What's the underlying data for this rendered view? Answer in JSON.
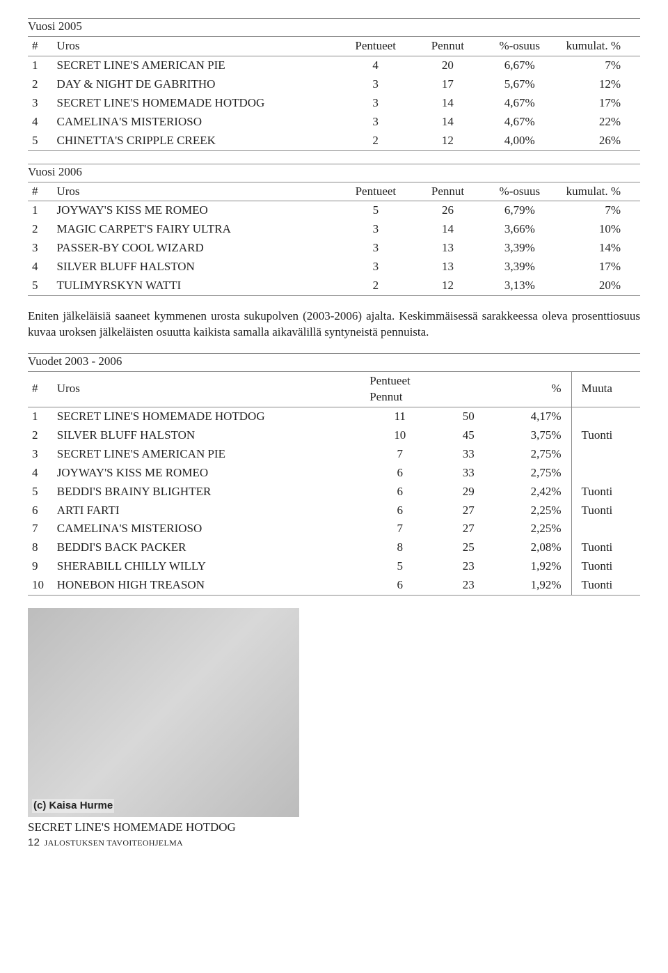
{
  "table2005": {
    "title": "Vuosi 2005",
    "headers": [
      "#",
      "Uros",
      "Pentueet",
      "Pennut",
      "%-osuus",
      "kumulat. %"
    ],
    "rows": [
      [
        "1",
        "SECRET LINE'S AMERICAN PIE",
        "4",
        "20",
        "6,67%",
        "7%"
      ],
      [
        "2",
        "DAY & NIGHT DE GABRITHO",
        "3",
        "17",
        "5,67%",
        "12%"
      ],
      [
        "3",
        "SECRET LINE'S HOMEMADE HOTDOG",
        "3",
        "14",
        "4,67%",
        "17%"
      ],
      [
        "4",
        "CAMELINA'S MISTERIOSO",
        "3",
        "14",
        "4,67%",
        "22%"
      ],
      [
        "5",
        "CHINETTA'S CRIPPLE CREEK",
        "2",
        "12",
        "4,00%",
        "26%"
      ]
    ]
  },
  "table2006": {
    "title": "Vuosi 2006",
    "headers": [
      "#",
      "Uros",
      "Pentueet",
      "Pennut",
      "%-osuus",
      "kumulat. %"
    ],
    "rows": [
      [
        "1",
        "JOYWAY'S KISS ME ROMEO",
        "5",
        "26",
        "6,79%",
        "7%"
      ],
      [
        "2",
        "MAGIC CARPET'S FAIRY ULTRA",
        "3",
        "14",
        "3,66%",
        "10%"
      ],
      [
        "3",
        "PASSER-BY COOL WIZARD",
        "3",
        "13",
        "3,39%",
        "14%"
      ],
      [
        "4",
        "SILVER BLUFF HALSTON",
        "3",
        "13",
        "3,39%",
        "17%"
      ],
      [
        "5",
        "TULIMYRSKYN WATTI",
        "2",
        "12",
        "3,13%",
        "20%"
      ]
    ]
  },
  "paragraph": "Eniten jälkeläisiä saaneet kymmenen urosta sukupolven (2003-2006) ajalta. Keskimmäisessä sarakkeessa oleva prosenttiosuus kuvaa uroksen jälkeläisten osuutta kaikista samalla aikavälillä syntyneistä pennuista.",
  "tableRange": {
    "title": "Vuodet 2003 - 2006",
    "headers": [
      "#",
      "Uros",
      "Pentueet",
      "Pennut",
      "%",
      "Muuta"
    ],
    "rows": [
      [
        "1",
        "SECRET LINE'S HOMEMADE HOTDOG",
        "11",
        "50",
        "4,17%",
        ""
      ],
      [
        "2",
        "SILVER BLUFF HALSTON",
        "10",
        "45",
        "3,75%",
        "Tuonti"
      ],
      [
        "3",
        "SECRET LINE'S AMERICAN PIE",
        "7",
        "33",
        "2,75%",
        ""
      ],
      [
        "4",
        "JOYWAY'S KISS ME ROMEO",
        "6",
        "33",
        "2,75%",
        ""
      ],
      [
        "5",
        "BEDDI'S BRAINY BLIGHTER",
        "6",
        "29",
        "2,42%",
        "Tuonti"
      ],
      [
        "6",
        "ARTI FARTI",
        "6",
        "27",
        "2,25%",
        "Tuonti"
      ],
      [
        "7",
        "CAMELINA'S MISTERIOSO",
        "7",
        "27",
        "2,25%",
        ""
      ],
      [
        "8",
        "BEDDI'S BACK PACKER",
        "8",
        "25",
        "2,08%",
        "Tuonti"
      ],
      [
        "9",
        "SHERABILL CHILLY WILLY",
        "5",
        "23",
        "1,92%",
        "Tuonti"
      ],
      [
        "10",
        "HONEBON HIGH TREASON",
        "6",
        "23",
        "1,92%",
        "Tuonti"
      ]
    ]
  },
  "image": {
    "credit": "(c) Kaisa Hurme",
    "caption": "SECRET LINE'S HOMEMADE HOTDOG"
  },
  "footer": {
    "page": "12",
    "text": "JALOSTUKSEN TAVOITEOHJELMA"
  }
}
